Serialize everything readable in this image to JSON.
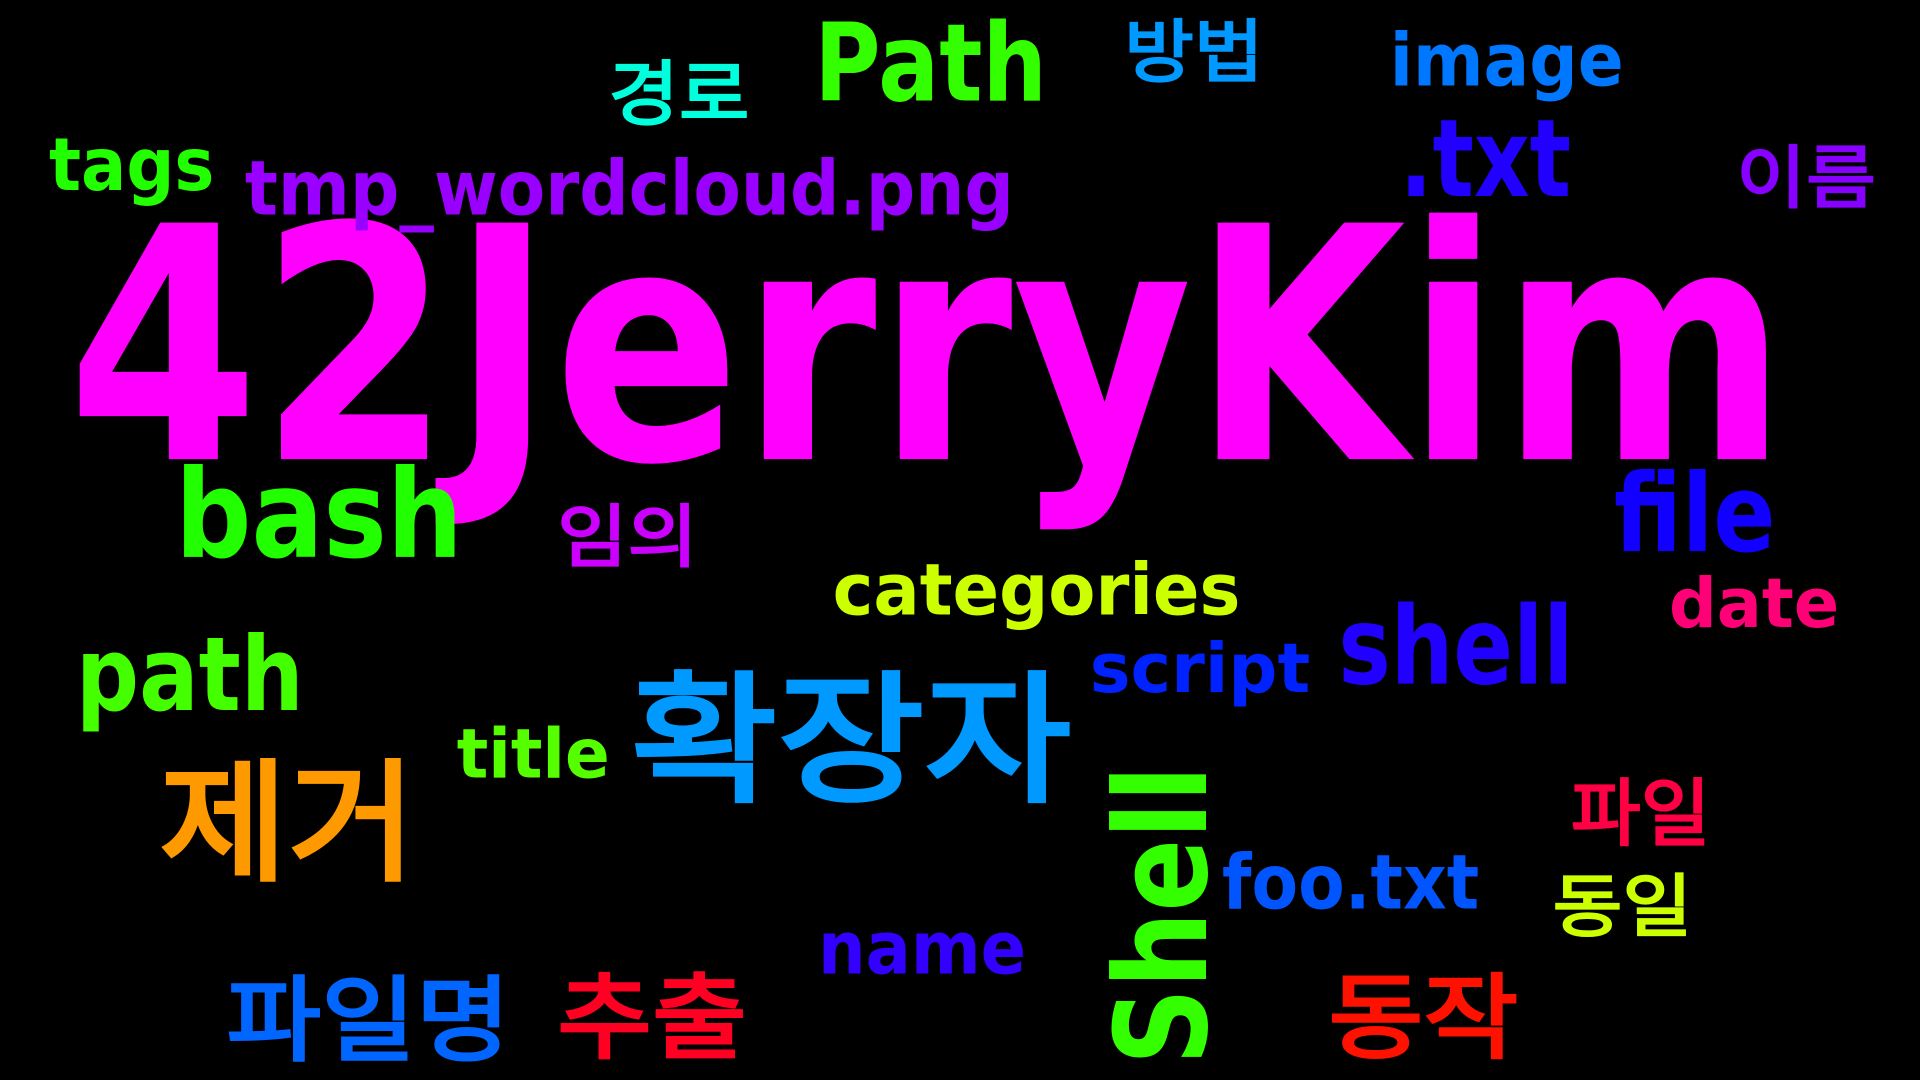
{
  "words": [
    {
      "text": "42JerryKim"
    },
    {
      "text": "Path"
    },
    {
      "text": "경로"
    },
    {
      "text": "방법"
    },
    {
      "text": "image"
    },
    {
      "text": "tags"
    },
    {
      "text": "tmp_wordcloud.png"
    },
    {
      "text": ".txt"
    },
    {
      "text": "이름"
    },
    {
      "text": "bash"
    },
    {
      "text": "임의"
    },
    {
      "text": "file"
    },
    {
      "text": "categories"
    },
    {
      "text": "date"
    },
    {
      "text": "shell"
    },
    {
      "text": "script"
    },
    {
      "text": "path"
    },
    {
      "text": "확장자"
    },
    {
      "text": "title"
    },
    {
      "text": "제거"
    },
    {
      "text": "Shell"
    },
    {
      "text": "파일"
    },
    {
      "text": "foo.txt"
    },
    {
      "text": "동일"
    },
    {
      "text": "name"
    },
    {
      "text": "파일명"
    },
    {
      "text": "추출"
    },
    {
      "text": "동작"
    }
  ]
}
